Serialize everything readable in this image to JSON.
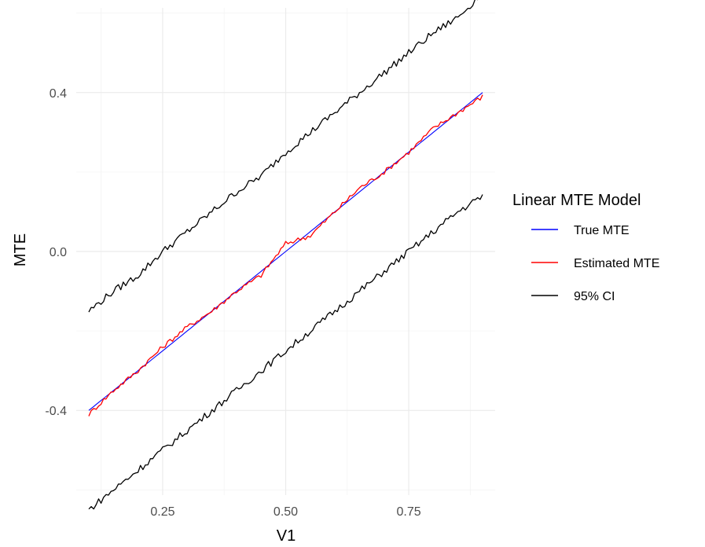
{
  "chart_data": {
    "type": "line",
    "xlabel": "V1",
    "ylabel": "MTE",
    "xlim": [
      0.1,
      0.9
    ],
    "ylim": [
      -0.65,
      0.65
    ],
    "x_ticks": [
      0.25,
      0.5,
      0.75
    ],
    "x_tick_labels": [
      "0.25",
      "0.50",
      "0.75"
    ],
    "y_ticks": [
      -0.4,
      0.0,
      0.4
    ],
    "y_tick_labels": [
      "-0.4",
      "0.0",
      "0.4"
    ],
    "grid": true,
    "legend": {
      "title": "Linear MTE Model",
      "placement": "right",
      "entries": [
        {
          "label": "True MTE",
          "color": "#0000ff"
        },
        {
          "label": "Estimated MTE",
          "color": "#ff0000"
        },
        {
          "label": "95% CI",
          "color": "#000000"
        }
      ]
    },
    "x": [
      0.1,
      0.15,
      0.2,
      0.25,
      0.3,
      0.35,
      0.4,
      0.45,
      0.5,
      0.55,
      0.6,
      0.65,
      0.7,
      0.75,
      0.8,
      0.85,
      0.9
    ],
    "series": [
      {
        "name": "True MTE",
        "color": "#0000ff",
        "values": [
          -0.4,
          -0.35,
          -0.3,
          -0.25,
          -0.2,
          -0.15,
          -0.1,
          -0.05,
          0.0,
          0.05,
          0.1,
          0.15,
          0.2,
          0.25,
          0.3,
          0.35,
          0.4
        ]
      },
      {
        "name": "Estimated MTE",
        "color": "#ff0000",
        "values": [
          -0.41,
          -0.35,
          -0.3,
          -0.24,
          -0.19,
          -0.15,
          -0.1,
          -0.06,
          0.02,
          0.04,
          0.1,
          0.16,
          0.2,
          0.25,
          0.31,
          0.35,
          0.39
        ]
      },
      {
        "name": "95% CI",
        "color": "#000000",
        "values": [
          -0.15,
          -0.1,
          -0.06,
          0.0,
          0.05,
          0.1,
          0.15,
          0.19,
          0.25,
          0.3,
          0.35,
          0.4,
          0.45,
          0.5,
          0.55,
          0.59,
          0.65
        ]
      },
      {
        "name": "95% CI",
        "color": "#000000",
        "values": [
          -0.65,
          -0.6,
          -0.55,
          -0.5,
          -0.45,
          -0.4,
          -0.35,
          -0.3,
          -0.25,
          -0.2,
          -0.15,
          -0.1,
          -0.05,
          0.0,
          0.05,
          0.1,
          0.14
        ]
      }
    ]
  }
}
